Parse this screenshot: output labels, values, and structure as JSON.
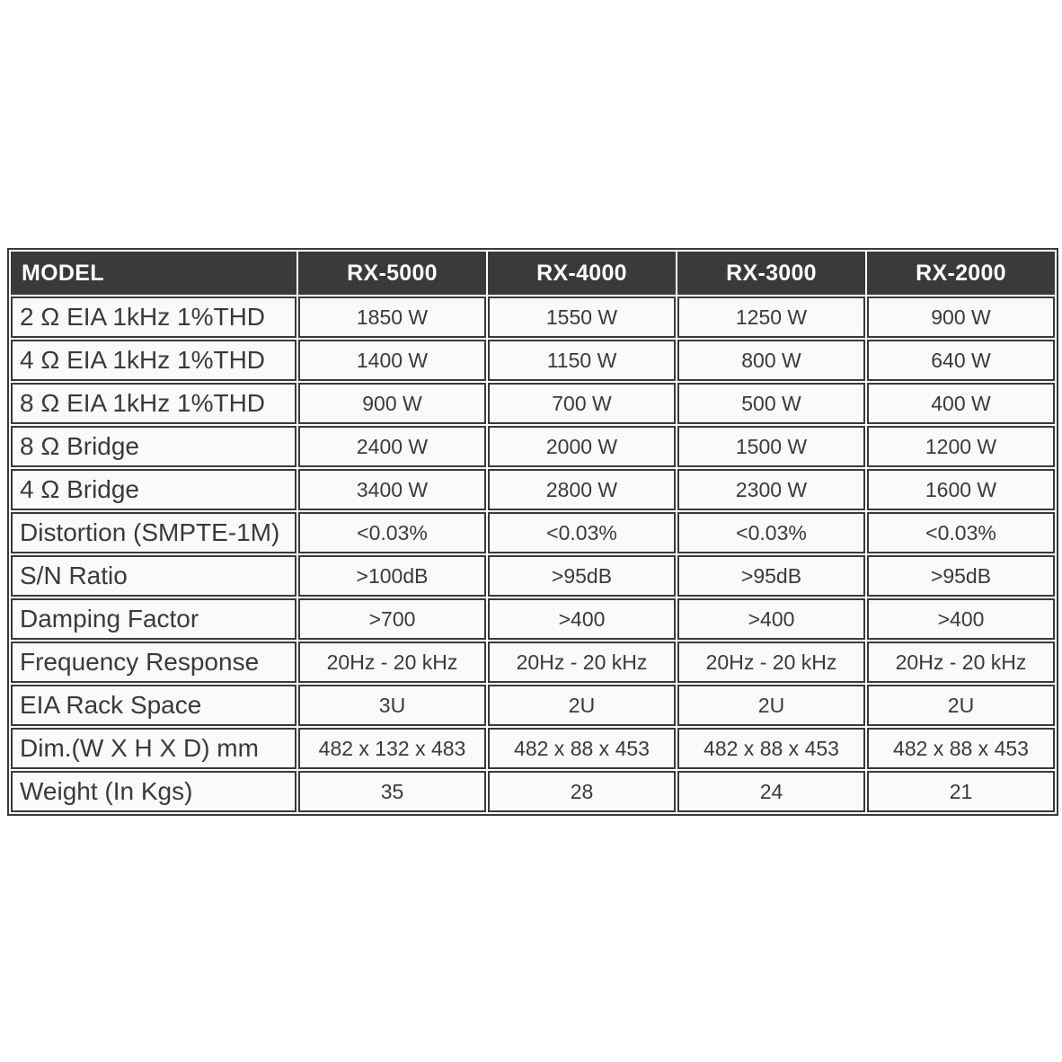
{
  "table": {
    "columns": [
      "MODEL",
      "RX-5000",
      "RX-4000",
      "RX-3000",
      "RX-2000"
    ],
    "rows": [
      {
        "label": "2 Ω EIA 1kHz 1%THD",
        "values": [
          "1850 W",
          "1550 W",
          "1250 W",
          "900 W"
        ]
      },
      {
        "label": "4 Ω EIA 1kHz 1%THD",
        "values": [
          "1400 W",
          "1150 W",
          "800 W",
          "640 W"
        ]
      },
      {
        "label": "8 Ω EIA 1kHz 1%THD",
        "values": [
          "900 W",
          "700 W",
          "500 W",
          "400 W"
        ]
      },
      {
        "label": "8 Ω Bridge",
        "values": [
          "2400 W",
          "2000 W",
          "1500 W",
          "1200 W"
        ]
      },
      {
        "label": "4 Ω Bridge",
        "values": [
          "3400 W",
          "2800 W",
          "2300 W",
          "1600 W"
        ]
      },
      {
        "label": "Distortion (SMPTE-1M)",
        "values": [
          "<0.03%",
          "<0.03%",
          "<0.03%",
          "<0.03%"
        ]
      },
      {
        "label": "S/N Ratio",
        "values": [
          ">100dB",
          ">95dB",
          ">95dB",
          ">95dB"
        ]
      },
      {
        "label": "Damping Factor",
        "values": [
          ">700",
          ">400",
          ">400",
          ">400"
        ]
      },
      {
        "label": "Frequency Response",
        "values": [
          "20Hz - 20 kHz",
          "20Hz - 20 kHz",
          "20Hz - 20 kHz",
          "20Hz - 20 kHz"
        ]
      },
      {
        "label": "EIA Rack Space",
        "values": [
          "3U",
          "2U",
          "2U",
          "2U"
        ]
      },
      {
        "label": "Dim.(W X H X D) mm",
        "values": [
          "482 x 132 x 483",
          "482 x 88 x 453",
          "482 x 88 x 453",
          "482 x 88 x 453"
        ]
      },
      {
        "label": "Weight (In Kgs)",
        "values": [
          "35",
          "28",
          "24",
          "21"
        ]
      }
    ]
  },
  "colors": {
    "header_bg": "#3a3a3a",
    "header_text": "#ffffff",
    "border": "#3a3a3a",
    "cell_bg": "#fafafa",
    "cell_text": "#3a3a3a",
    "page_bg": "#ffffff"
  }
}
